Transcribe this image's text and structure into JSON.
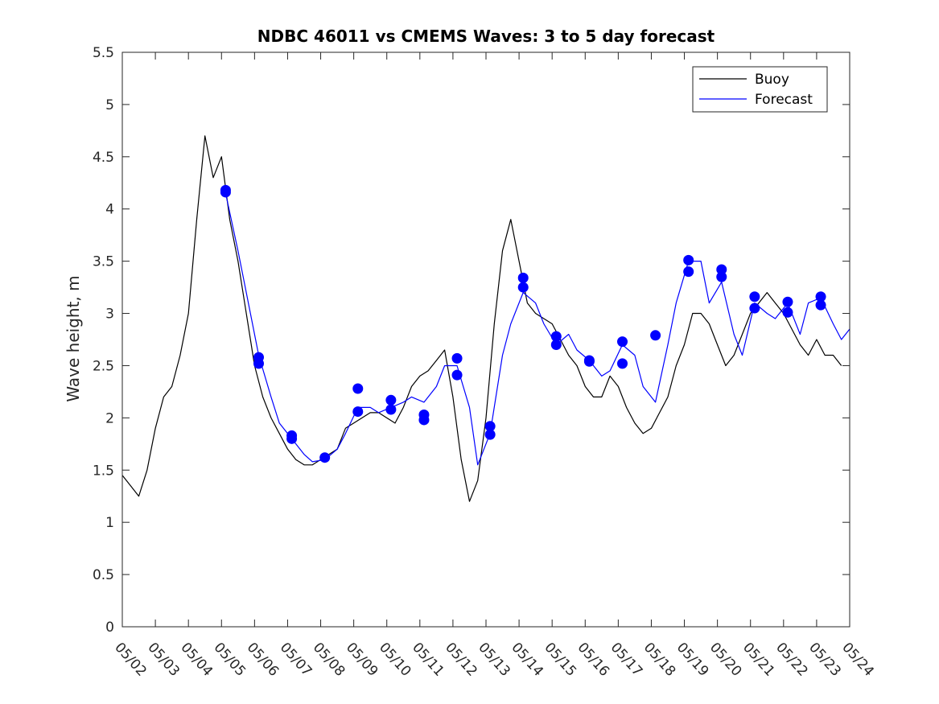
{
  "chart_data": {
    "type": "line",
    "title": "NDBC 46011 vs CMEMS Waves: 3 to 5 day forecast",
    "xlabel": "",
    "ylabel": "Wave height, m",
    "xlim": [
      "05/02",
      "05/24"
    ],
    "ylim": [
      0,
      5.5
    ],
    "categories": [
      "05/02",
      "05/03",
      "05/04",
      "05/05",
      "05/06",
      "05/07",
      "05/08",
      "05/09",
      "05/10",
      "05/11",
      "05/12",
      "05/13",
      "05/14",
      "05/15",
      "05/16",
      "05/17",
      "05/18",
      "05/19",
      "05/20",
      "05/21",
      "05/22",
      "05/23",
      "05/24"
    ],
    "yticks": [
      "0",
      "0.5",
      "1",
      "1.5",
      "2",
      "2.5",
      "3",
      "3.5",
      "4",
      "4.5",
      "5",
      "5.5"
    ],
    "legend_position": "top-right",
    "grid": false,
    "colors": {
      "buoy": "#000000",
      "forecast": "#0000ff"
    },
    "series": [
      {
        "name": "Buoy",
        "x": [
          "05/02 00h",
          "05/02 06h",
          "05/02 12h",
          "05/02 18h",
          "05/03 00h",
          "05/03 06h",
          "05/03 12h",
          "05/03 18h",
          "05/04 00h",
          "05/04 06h",
          "05/04 12h",
          "05/04 18h",
          "05/05 00h",
          "05/05 06h",
          "05/05 12h",
          "05/05 18h",
          "05/06 00h",
          "05/06 06h",
          "05/06 12h",
          "05/06 18h",
          "05/07 00h",
          "05/07 06h",
          "05/07 12h",
          "05/07 18h",
          "05/08 00h",
          "05/08 06h",
          "05/08 12h",
          "05/08 18h",
          "05/09 00h",
          "05/09 06h",
          "05/09 12h",
          "05/09 18h",
          "05/10 00h",
          "05/10 06h",
          "05/10 12h",
          "05/10 18h",
          "05/11 00h",
          "05/11 06h",
          "05/11 12h",
          "05/11 18h",
          "05/12 00h",
          "05/12 06h",
          "05/12 12h",
          "05/12 18h",
          "05/13 00h",
          "05/13 06h",
          "05/13 12h",
          "05/13 18h",
          "05/14 00h",
          "05/14 06h",
          "05/14 12h",
          "05/14 18h",
          "05/15 00h",
          "05/15 06h",
          "05/15 12h",
          "05/15 18h",
          "05/16 00h",
          "05/16 06h",
          "05/16 12h",
          "05/16 18h",
          "05/17 00h",
          "05/17 06h",
          "05/17 12h",
          "05/17 18h",
          "05/18 00h",
          "05/18 06h",
          "05/18 12h",
          "05/18 18h",
          "05/19 00h",
          "05/19 06h",
          "05/19 12h",
          "05/19 18h",
          "05/20 00h",
          "05/20 06h",
          "05/20 12h",
          "05/20 18h",
          "05/21 00h",
          "05/21 06h",
          "05/21 12h",
          "05/21 18h",
          "05/22 00h",
          "05/22 06h",
          "05/22 12h",
          "05/22 18h",
          "05/23 00h",
          "05/23 06h",
          "05/23 12h",
          "05/23 18h"
        ],
        "values": [
          1.45,
          1.35,
          1.25,
          1.5,
          1.9,
          2.2,
          2.3,
          2.6,
          3.0,
          3.9,
          4.7,
          4.3,
          4.5,
          3.9,
          3.5,
          3.0,
          2.5,
          2.2,
          2.0,
          1.85,
          1.7,
          1.6,
          1.55,
          1.55,
          1.6,
          1.65,
          1.7,
          1.9,
          1.95,
          2.0,
          2.05,
          2.05,
          2.0,
          1.95,
          2.1,
          2.3,
          2.4,
          2.45,
          2.55,
          2.65,
          2.2,
          1.6,
          1.2,
          1.4,
          2.0,
          2.9,
          3.6,
          3.9,
          3.5,
          3.1,
          3.0,
          2.95,
          2.9,
          2.75,
          2.6,
          2.5,
          2.3,
          2.2,
          2.2,
          2.4,
          2.3,
          2.1,
          1.95,
          1.85,
          1.9,
          2.05,
          2.2,
          2.5,
          2.7,
          3.0,
          3.0,
          2.9,
          2.7,
          2.5,
          2.6,
          2.8,
          3.0,
          3.1,
          3.2,
          3.1,
          3.0,
          2.85,
          2.7,
          2.6,
          2.75,
          2.6,
          2.6,
          2.5
        ]
      },
      {
        "name": "Forecast",
        "x": [
          "05/05 03h",
          "05/05 12h",
          "05/05 18h",
          "05/06 03h",
          "05/06 12h",
          "05/06 18h",
          "05/07 03h",
          "05/07 12h",
          "05/07 18h",
          "05/08 03h",
          "05/08 12h",
          "05/08 18h",
          "05/09 03h",
          "05/09 12h",
          "05/09 18h",
          "05/10 03h",
          "05/10 12h",
          "05/10 18h",
          "05/11 03h",
          "05/11 12h",
          "05/11 18h",
          "05/12 03h",
          "05/12 12h",
          "05/12 18h",
          "05/13 03h",
          "05/13 12h",
          "05/13 18h",
          "05/14 03h",
          "05/14 12h",
          "05/14 18h",
          "05/15 03h",
          "05/15 12h",
          "05/15 18h",
          "05/16 03h",
          "05/16 12h",
          "05/16 18h",
          "05/17 03h",
          "05/17 12h",
          "05/17 18h",
          "05/18 03h",
          "05/18 12h",
          "05/18 18h",
          "05/19 03h",
          "05/19 12h",
          "05/19 18h",
          "05/20 03h",
          "05/20 12h",
          "05/20 18h",
          "05/21 03h",
          "05/21 12h",
          "05/21 18h",
          "05/22 03h",
          "05/22 12h",
          "05/22 18h",
          "05/23 03h",
          "05/23 12h",
          "05/23 18h",
          "05/24 00h"
        ],
        "values": [
          4.15,
          3.6,
          3.2,
          2.6,
          2.2,
          1.95,
          1.8,
          1.65,
          1.58,
          1.6,
          1.7,
          1.85,
          2.1,
          2.1,
          2.05,
          2.1,
          2.15,
          2.2,
          2.15,
          2.3,
          2.5,
          2.5,
          2.1,
          1.55,
          1.85,
          2.6,
          2.9,
          3.2,
          3.1,
          2.9,
          2.7,
          2.8,
          2.65,
          2.55,
          2.4,
          2.45,
          2.7,
          2.6,
          2.3,
          2.15,
          2.7,
          3.1,
          3.5,
          3.5,
          3.1,
          3.3,
          2.8,
          2.6,
          3.1,
          3.0,
          2.95,
          3.1,
          2.8,
          3.1,
          3.15,
          2.9,
          2.75,
          2.85
        ]
      }
    ],
    "markers": [
      {
        "x": "05/05 03h",
        "y": 4.18
      },
      {
        "x": "05/05 03h",
        "y": 4.16
      },
      {
        "x": "05/06 03h",
        "y": 2.58
      },
      {
        "x": "05/06 03h",
        "y": 2.52
      },
      {
        "x": "05/07 03h",
        "y": 1.83
      },
      {
        "x": "05/07 03h",
        "y": 1.8
      },
      {
        "x": "05/08 03h",
        "y": 1.62
      },
      {
        "x": "05/09 03h",
        "y": 2.28
      },
      {
        "x": "05/09 03h",
        "y": 2.06
      },
      {
        "x": "05/10 03h",
        "y": 2.17
      },
      {
        "x": "05/10 03h",
        "y": 2.08
      },
      {
        "x": "05/11 03h",
        "y": 2.03
      },
      {
        "x": "05/11 03h",
        "y": 1.98
      },
      {
        "x": "05/12 03h",
        "y": 2.57
      },
      {
        "x": "05/12 03h",
        "y": 2.41
      },
      {
        "x": "05/13 03h",
        "y": 1.92
      },
      {
        "x": "05/13 03h",
        "y": 1.84
      },
      {
        "x": "05/14 03h",
        "y": 3.34
      },
      {
        "x": "05/14 03h",
        "y": 3.25
      },
      {
        "x": "05/15 03h",
        "y": 2.78
      },
      {
        "x": "05/15 03h",
        "y": 2.7
      },
      {
        "x": "05/16 03h",
        "y": 2.55
      },
      {
        "x": "05/16 03h",
        "y": 2.54
      },
      {
        "x": "05/17 03h",
        "y": 2.73
      },
      {
        "x": "05/17 03h",
        "y": 2.52
      },
      {
        "x": "05/18 03h",
        "y": 2.79
      },
      {
        "x": "05/19 03h",
        "y": 3.51
      },
      {
        "x": "05/19 03h",
        "y": 3.4
      },
      {
        "x": "05/20 03h",
        "y": 3.42
      },
      {
        "x": "05/20 03h",
        "y": 3.35
      },
      {
        "x": "05/21 03h",
        "y": 3.16
      },
      {
        "x": "05/21 03h",
        "y": 3.05
      },
      {
        "x": "05/22 03h",
        "y": 3.11
      },
      {
        "x": "05/22 03h",
        "y": 3.01
      },
      {
        "x": "05/23 03h",
        "y": 3.16
      },
      {
        "x": "05/23 03h",
        "y": 3.08
      }
    ]
  }
}
